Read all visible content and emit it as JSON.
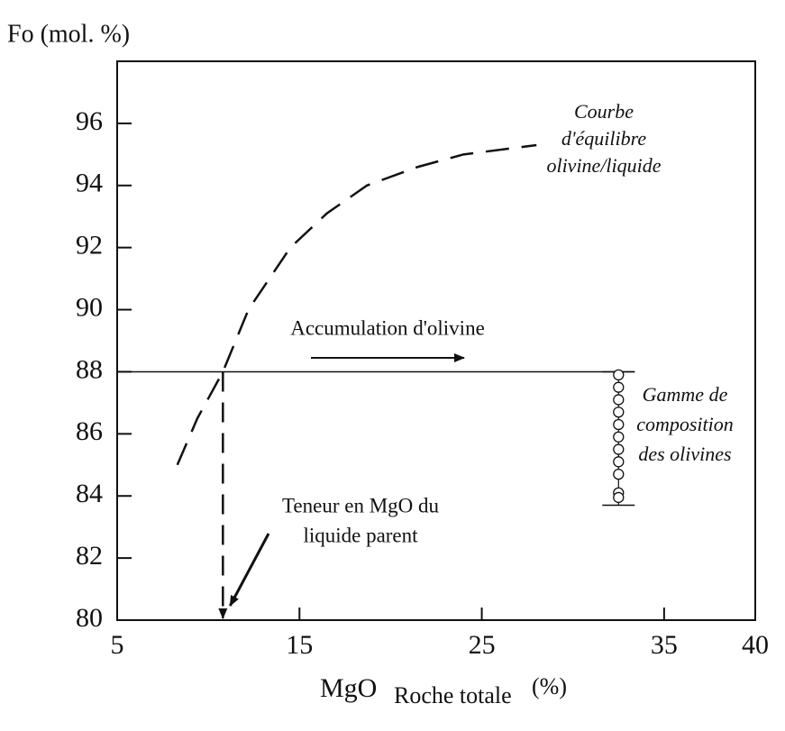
{
  "chart_data": {
    "type": "line",
    "ylabel": "Fo (mol. %)",
    "xlabel": [
      "MgO",
      "Roche totale",
      "(%)"
    ],
    "xlim": [
      5,
      40
    ],
    "xticks": [
      5,
      15,
      25,
      35,
      40
    ],
    "ylim": [
      80,
      98
    ],
    "yticks": [
      80,
      82,
      84,
      86,
      88,
      90,
      92,
      94,
      96
    ],
    "series": [
      {
        "color": "#111111",
        "style": "dashed",
        "x": [
          8.3,
          9.4,
          10.8,
          12.2,
          14.5,
          16.5,
          18.7,
          21.5,
          24,
          28
        ],
        "values": [
          85,
          86.5,
          88,
          90,
          92,
          93.1,
          94,
          94.6,
          95,
          95.3
        ]
      },
      {
        "color": "#111111",
        "style": "markers",
        "x": [
          32.5,
          32.5,
          32.5,
          32.5,
          32.5,
          32.5,
          32.5,
          32.5,
          32.5,
          32.5,
          32.5
        ],
        "values": [
          87.9,
          87.5,
          87.1,
          86.7,
          86.3,
          85.9,
          85.5,
          85.1,
          84.7,
          84.1,
          83.95
        ]
      }
    ],
    "olivine_range": [
      83.7,
      88
    ],
    "parent_melt": {
      "mgo": 10.8,
      "fo": 88
    },
    "annotations": {
      "curve": [
        "Courbe",
        "d'équilibre",
        "olivine/liquide"
      ],
      "accumulation": "Accumulation d'olivine",
      "range": [
        "Gamme de",
        "composition",
        "des olivines"
      ],
      "parent": [
        "Teneur en MgO du",
        "liquide parent"
      ]
    }
  }
}
